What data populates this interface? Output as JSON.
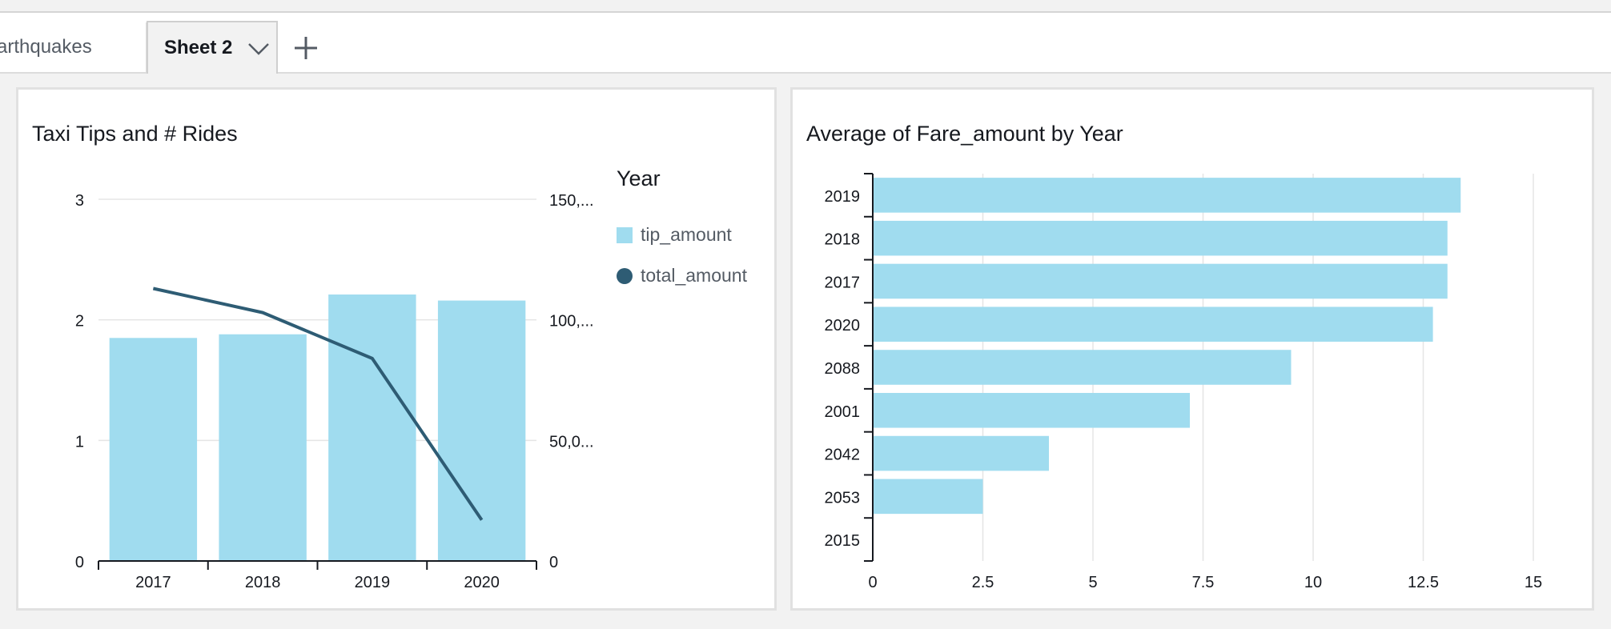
{
  "tabs": [
    {
      "label": "arthquakes",
      "active": false
    },
    {
      "label": "Sheet 2",
      "active": true
    }
  ],
  "add_tab_icon": "plus-icon",
  "colors": {
    "bar": "#a0dcef",
    "line": "#2e5c74",
    "grid": "#e5e5e5",
    "axis": "#16191f"
  },
  "chart_data": [
    {
      "type": "bar",
      "title": "Taxi Tips and # Rides",
      "legend_title": "Year",
      "legend_placement": "right",
      "categories": [
        "2017",
        "2018",
        "2019",
        "2020"
      ],
      "series": [
        {
          "name": "tip_amount",
          "type": "bar",
          "axis": "left",
          "values": [
            1.85,
            1.88,
            2.21,
            2.16
          ]
        },
        {
          "name": "total_amount",
          "type": "line",
          "axis": "right",
          "values": [
            113000,
            103000,
            84000,
            17000
          ]
        }
      ],
      "y_left": {
        "ylim": [
          0,
          3
        ],
        "ticks": [
          "0",
          "1",
          "2",
          "3"
        ]
      },
      "y_right": {
        "ylim": [
          0,
          150000
        ],
        "ticks": [
          "0",
          "50,0...",
          "100,...",
          "150,..."
        ]
      },
      "grid": true
    },
    {
      "type": "bar",
      "orientation": "horizontal",
      "title": "Average of Fare_amount by Year",
      "categories": [
        "2019",
        "2018",
        "2017",
        "2020",
        "2088",
        "2001",
        "2042",
        "2053",
        "2015"
      ],
      "values": [
        13.35,
        13.05,
        13.05,
        12.72,
        9.5,
        7.2,
        4.0,
        2.5,
        0
      ],
      "xlim": [
        0,
        15
      ],
      "x_ticks": [
        "0",
        "2.5",
        "5",
        "7.5",
        "10",
        "12.5",
        "15"
      ],
      "grid": true
    }
  ]
}
